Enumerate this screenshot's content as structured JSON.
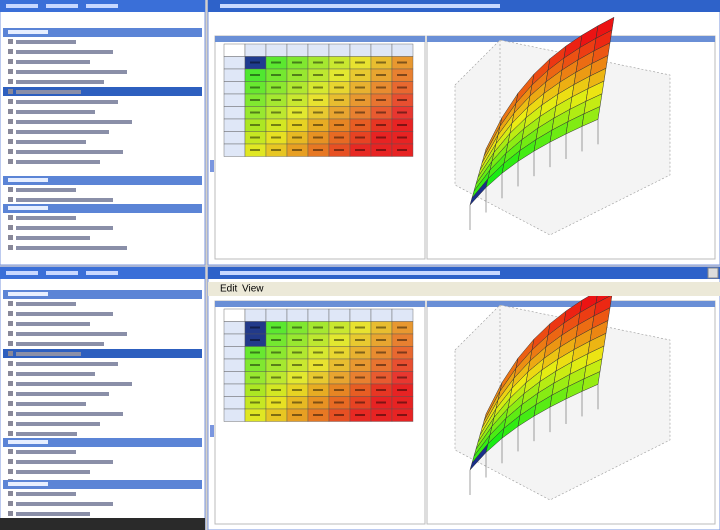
{
  "menu": {
    "items": [
      "Edit",
      "View"
    ]
  }
}
